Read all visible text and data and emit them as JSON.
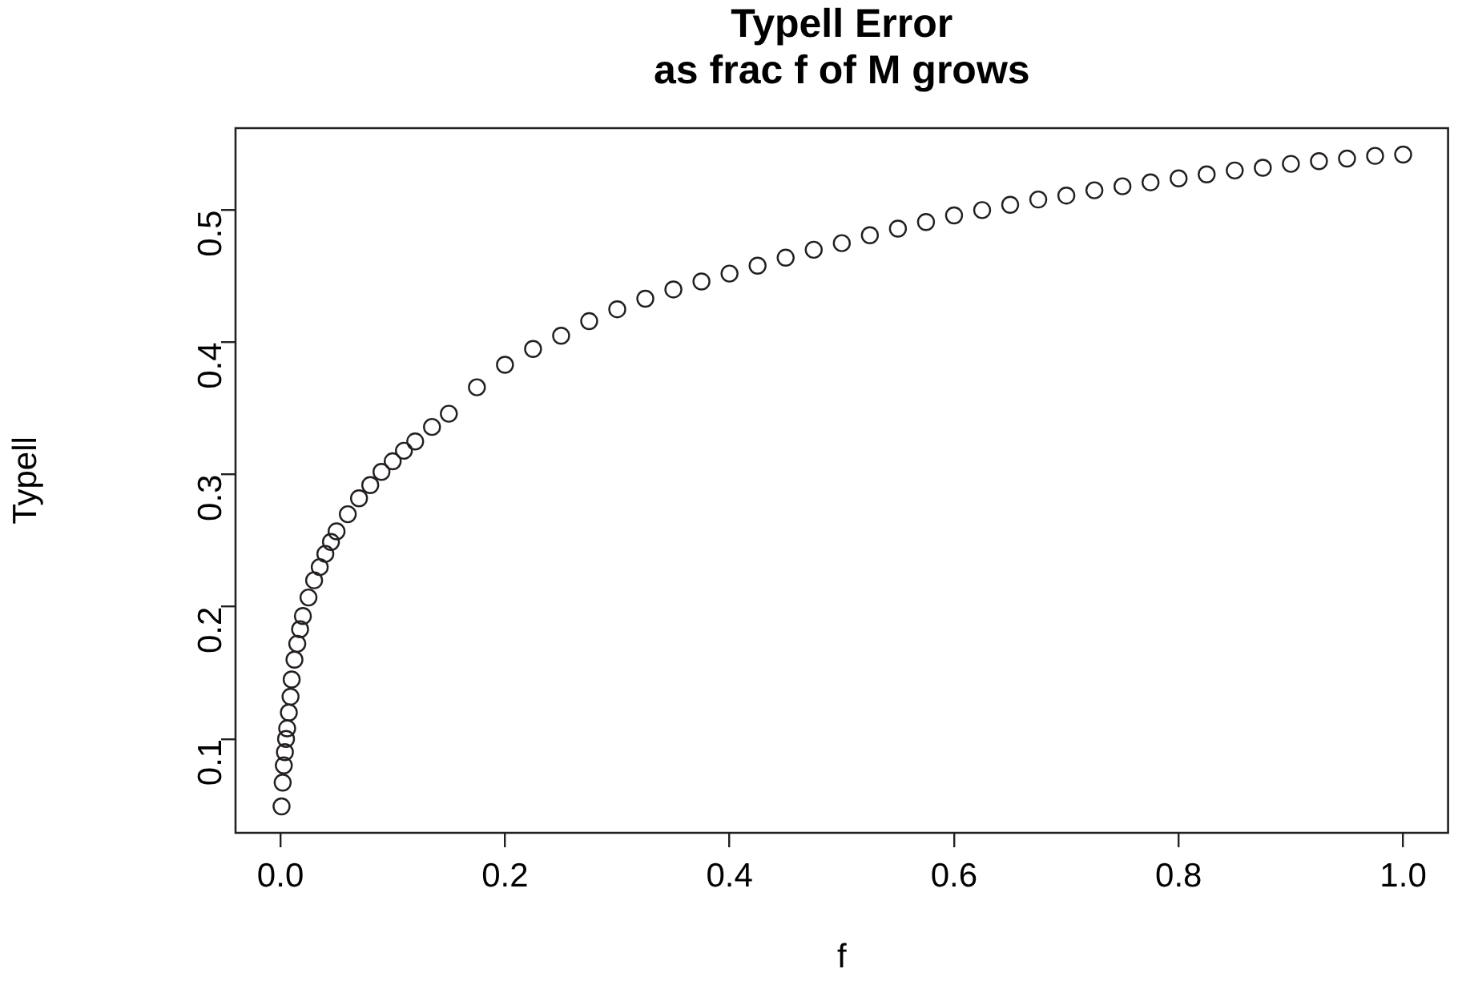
{
  "chart_data": {
    "type": "scatter",
    "title": "Typell Error\nas frac f of M grows",
    "xlabel": "f",
    "ylabel": "Typell",
    "x": [
      0.001,
      0.002,
      0.003,
      0.004,
      0.005,
      0.006,
      0.0075,
      0.009,
      0.01,
      0.0125,
      0.015,
      0.0175,
      0.02,
      0.025,
      0.03,
      0.035,
      0.04,
      0.045,
      0.05,
      0.06,
      0.07,
      0.08,
      0.09,
      0.1,
      0.11,
      0.12,
      0.135,
      0.15,
      0.175,
      0.2,
      0.225,
      0.25,
      0.275,
      0.3,
      0.325,
      0.35,
      0.375,
      0.4,
      0.425,
      0.45,
      0.475,
      0.5,
      0.525,
      0.55,
      0.575,
      0.6,
      0.625,
      0.65,
      0.675,
      0.7,
      0.725,
      0.75,
      0.775,
      0.8,
      0.825,
      0.85,
      0.875,
      0.9,
      0.925,
      0.95,
      0.975,
      1.0
    ],
    "series": [
      {
        "color": "#231f20",
        "values": [
          0.049,
          0.067,
          0.08,
          0.09,
          0.1,
          0.108,
          0.12,
          0.132,
          0.145,
          0.16,
          0.172,
          0.183,
          0.193,
          0.207,
          0.22,
          0.23,
          0.24,
          0.249,
          0.257,
          0.27,
          0.282,
          0.292,
          0.302,
          0.31,
          0.318,
          0.325,
          0.336,
          0.346,
          0.366,
          0.383,
          0.395,
          0.405,
          0.416,
          0.425,
          0.433,
          0.44,
          0.446,
          0.452,
          0.458,
          0.464,
          0.47,
          0.475,
          0.481,
          0.486,
          0.491,
          0.496,
          0.5,
          0.504,
          0.508,
          0.511,
          0.515,
          0.518,
          0.521,
          0.524,
          0.527,
          0.53,
          0.532,
          0.535,
          0.537,
          0.539,
          0.541,
          0.542
        ]
      }
    ],
    "xlim": [
      -0.04,
      1.04
    ],
    "ylim": [
      0.029,
      0.562
    ],
    "xticks": [
      {
        "value": 0,
        "label": "0.0"
      },
      0.2,
      0.4,
      0.6,
      0.8,
      {
        "value": 1,
        "label": "1.0"
      }
    ],
    "yticks": [
      0.1,
      0.2,
      0.3,
      0.4,
      0.5
    ],
    "marker": "circle",
    "grid": false,
    "legend": false
  }
}
